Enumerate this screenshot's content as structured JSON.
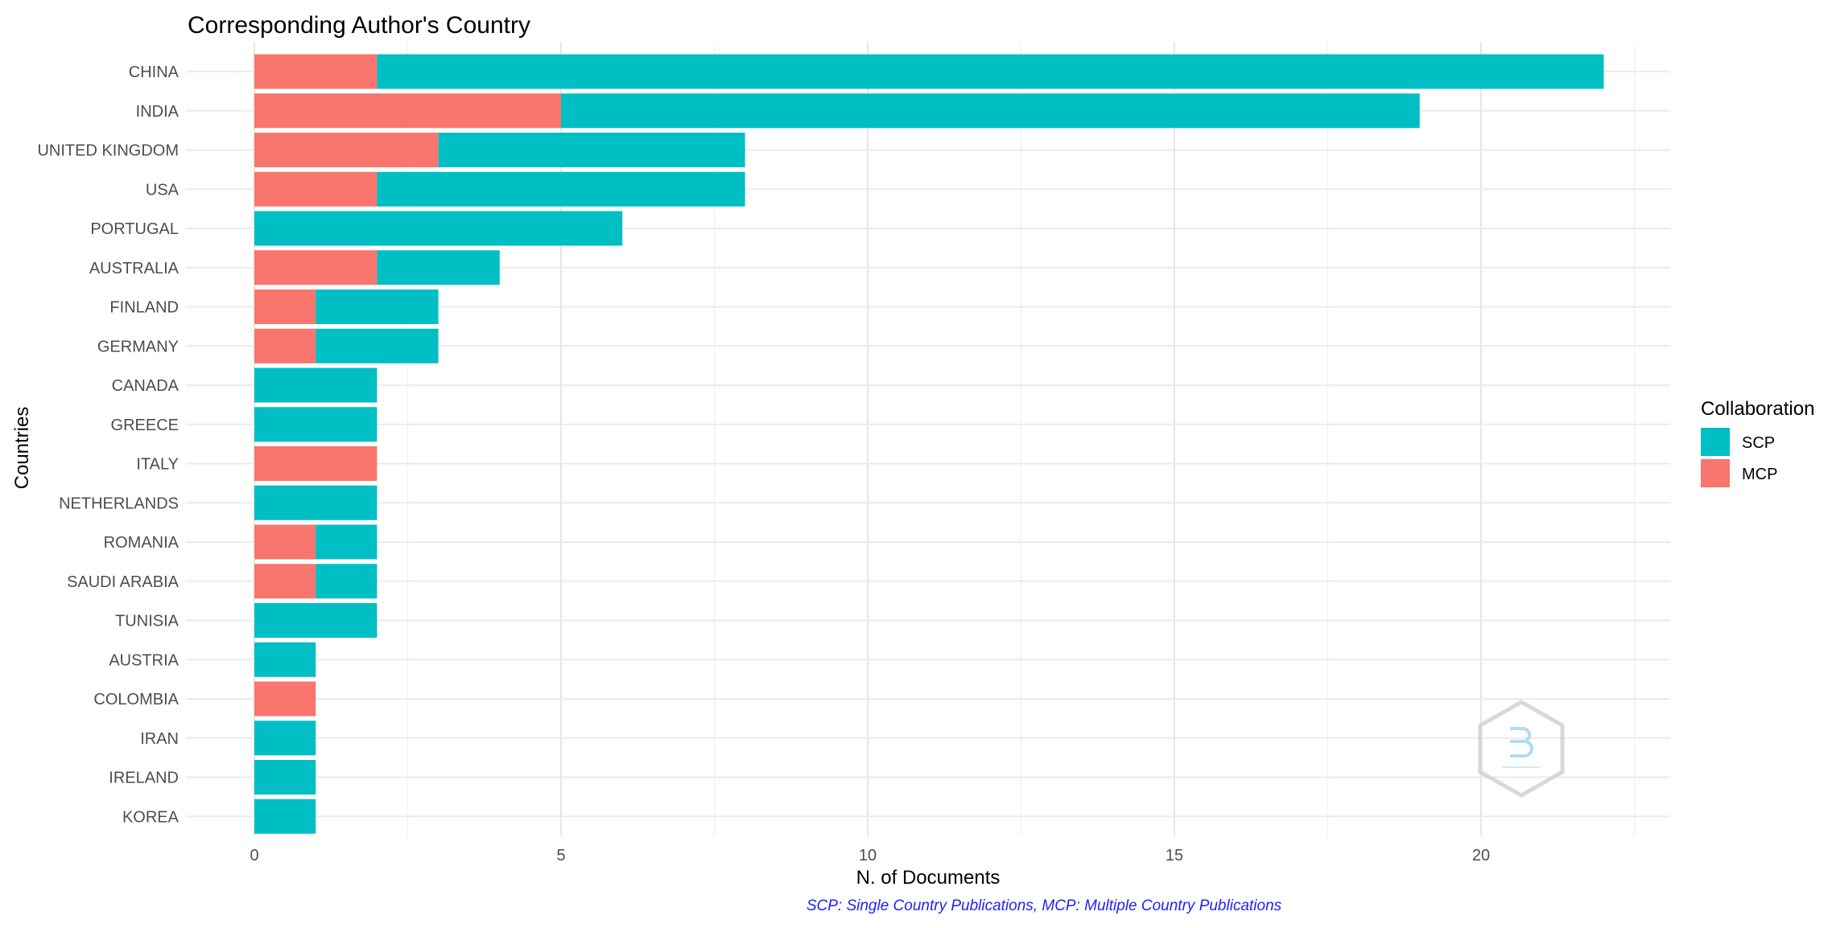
{
  "chart_data": {
    "type": "bar",
    "orientation": "horizontal",
    "stacked": true,
    "title": "Corresponding Author's Country",
    "xlabel": "N. of Documents",
    "ylabel": "Countries",
    "caption": "SCP: Single Country Publications, MCP: Multiple Country Publications",
    "xlim": [
      0,
      23
    ],
    "x_ticks": [
      0,
      5,
      10,
      15,
      20
    ],
    "grid": true,
    "legend": {
      "title": "Collaboration",
      "placement": "right",
      "entries": [
        "SCP",
        "MCP"
      ]
    },
    "categories": [
      "CHINA",
      "INDIA",
      "UNITED KINGDOM",
      "USA",
      "PORTUGAL",
      "AUSTRALIA",
      "FINLAND",
      "GERMANY",
      "CANADA",
      "GREECE",
      "ITALY",
      "NETHERLANDS",
      "ROMANIA",
      "SAUDI ARABIA",
      "TUNISIA",
      "AUSTRIA",
      "COLOMBIA",
      "IRAN",
      "IRELAND",
      "KOREA"
    ],
    "series": [
      {
        "name": "MCP",
        "color": "#F8766D",
        "values": [
          2,
          5,
          3,
          2,
          0,
          2,
          1,
          1,
          0,
          0,
          2,
          0,
          1,
          1,
          0,
          0,
          1,
          0,
          0,
          0
        ]
      },
      {
        "name": "SCP",
        "color": "#00BFC4",
        "values": [
          20,
          14,
          5,
          6,
          6,
          2,
          2,
          2,
          2,
          2,
          0,
          2,
          1,
          1,
          2,
          1,
          0,
          1,
          1,
          1
        ]
      }
    ]
  }
}
